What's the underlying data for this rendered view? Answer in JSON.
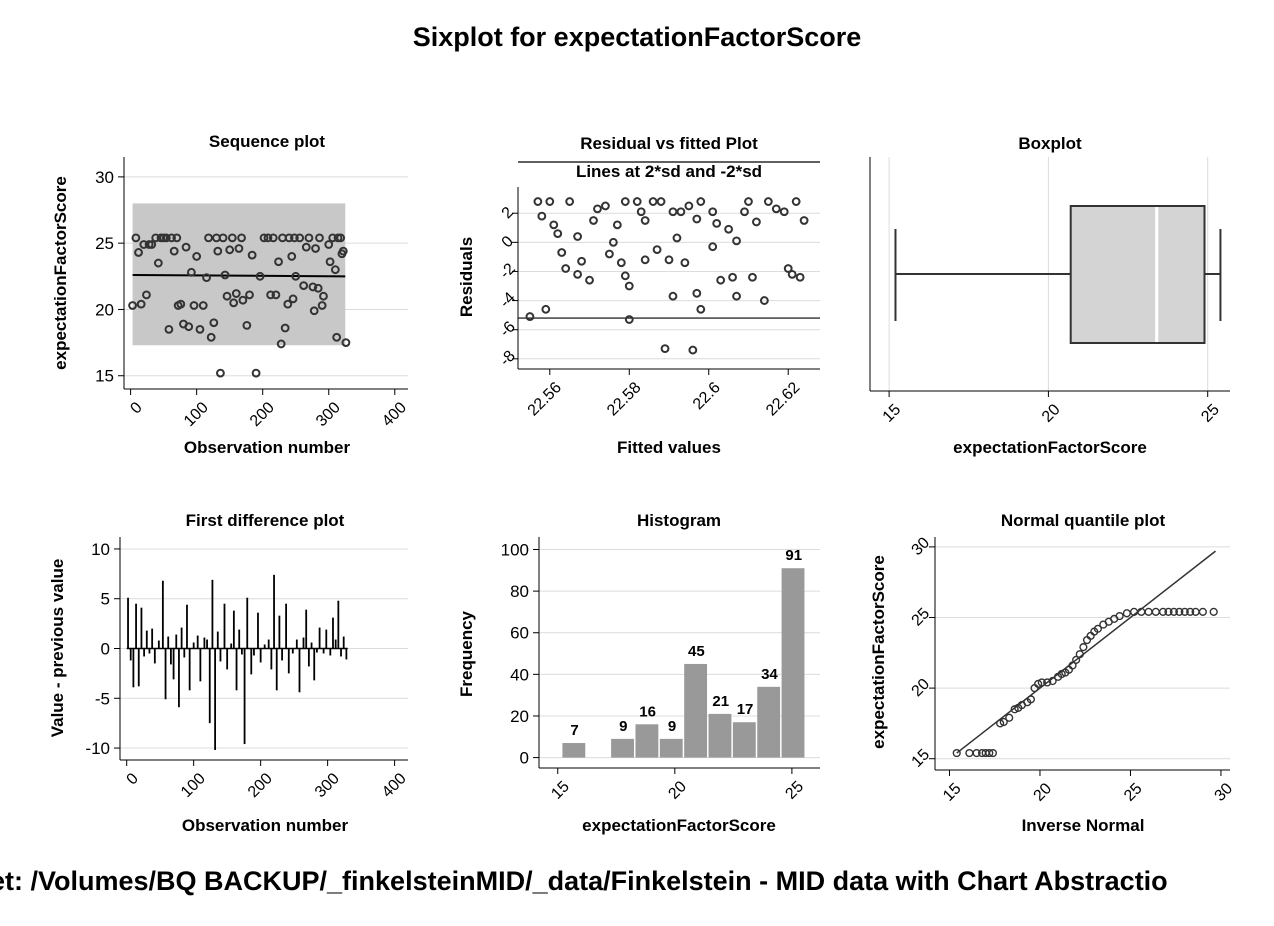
{
  "page": {
    "title": "Sixplot for expectationFactorScore",
    "footer": "et: /Volumes/BQ BACKUP/_finkelsteinMID/_data/Finkelstein - MID data with Chart Abstractio"
  },
  "chart_data": [
    {
      "id": "sequence",
      "type": "scatter",
      "title": "Sequence plot",
      "xlabel": "Observation number",
      "ylabel": "expectationFactorScore",
      "xlim": [
        -10,
        420
      ],
      "ylim": [
        14,
        31.5
      ],
      "xticks": [
        0,
        100,
        200,
        300,
        400
      ],
      "yticks": [
        15,
        20,
        25,
        30
      ],
      "band": {
        "x": [
          3,
          325
        ],
        "y": [
          17.3,
          28
        ]
      },
      "fit_line": {
        "x": [
          3,
          325
        ],
        "y": [
          22.6,
          22.5
        ]
      },
      "points": [
        [
          3,
          20.3
        ],
        [
          8,
          25.4
        ],
        [
          12,
          24.3
        ],
        [
          16,
          20.4
        ],
        [
          20,
          24.9
        ],
        [
          24,
          21.1
        ],
        [
          28,
          24.9
        ],
        [
          32,
          24.9
        ],
        [
          38,
          25.4
        ],
        [
          42,
          23.5
        ],
        [
          46,
          25.4
        ],
        [
          50,
          25.4
        ],
        [
          54,
          25.4
        ],
        [
          58,
          18.5
        ],
        [
          62,
          25.4
        ],
        [
          66,
          24.4
        ],
        [
          70,
          25.4
        ],
        [
          72,
          20.3
        ],
        [
          76,
          20.4
        ],
        [
          80,
          18.9
        ],
        [
          84,
          24.7
        ],
        [
          88,
          18.7
        ],
        [
          92,
          22.8
        ],
        [
          96,
          20.3
        ],
        [
          100,
          24
        ],
        [
          105,
          18.5
        ],
        [
          110,
          20.3
        ],
        [
          115,
          22.4
        ],
        [
          118,
          25.4
        ],
        [
          122,
          17.9
        ],
        [
          126,
          19
        ],
        [
          130,
          25.4
        ],
        [
          132,
          24.4
        ],
        [
          136,
          15.2
        ],
        [
          140,
          25.4
        ],
        [
          143,
          22.6
        ],
        [
          146,
          21
        ],
        [
          150,
          24.5
        ],
        [
          154,
          25.4
        ],
        [
          156,
          20.5
        ],
        [
          160,
          21.2
        ],
        [
          164,
          24.6
        ],
        [
          168,
          25.4
        ],
        [
          170,
          20.7
        ],
        [
          176,
          18.8
        ],
        [
          180,
          21.1
        ],
        [
          184,
          24.1
        ],
        [
          190,
          15.2
        ],
        [
          196,
          22.5
        ],
        [
          202,
          25.4
        ],
        [
          208,
          25.4
        ],
        [
          212,
          21.1
        ],
        [
          216,
          25.4
        ],
        [
          220,
          21.1
        ],
        [
          224,
          23.6
        ],
        [
          228,
          17.4
        ],
        [
          230,
          25.4
        ],
        [
          234,
          18.6
        ],
        [
          238,
          20.4
        ],
        [
          240,
          25.4
        ],
        [
          244,
          24
        ],
        [
          246,
          20.8
        ],
        [
          248,
          25.4
        ],
        [
          250,
          22.5
        ],
        [
          256,
          25.4
        ],
        [
          262,
          21.8
        ],
        [
          266,
          24.7
        ],
        [
          270,
          25.4
        ],
        [
          276,
          21.7
        ],
        [
          278,
          19.9
        ],
        [
          280,
          24.6
        ],
        [
          284,
          21.6
        ],
        [
          286,
          25.4
        ],
        [
          290,
          20.3
        ],
        [
          292,
          21
        ],
        [
          300,
          24.9
        ],
        [
          302,
          23.6
        ],
        [
          306,
          25.4
        ],
        [
          310,
          23
        ],
        [
          312,
          17.9
        ],
        [
          314,
          25.4
        ],
        [
          318,
          25.4
        ],
        [
          320,
          24.2
        ],
        [
          322,
          24.4
        ],
        [
          326,
          17.5
        ]
      ]
    },
    {
      "id": "residual",
      "type": "scatter",
      "title": "Residual vs fitted Plot",
      "subtitle": "Lines at 2*sd and -2*sd",
      "xlabel": "Fitted values",
      "ylabel": "Residuals",
      "xlim": [
        22.552,
        22.628
      ],
      "ylim": [
        -8.7,
        3.8
      ],
      "xticks": [
        22.56,
        22.58,
        22.6,
        22.62
      ],
      "xticklabels": [
        "22.56",
        "22.58",
        "22.6",
        "22.62"
      ],
      "yticks": [
        2,
        0,
        -2,
        -4,
        -6,
        -8
      ],
      "hlines": [
        -5.2
      ],
      "points": [
        [
          22.555,
          -5.1
        ],
        [
          22.559,
          -4.6
        ],
        [
          22.557,
          2.8
        ],
        [
          22.558,
          1.8
        ],
        [
          22.56,
          2.8
        ],
        [
          22.561,
          1.2
        ],
        [
          22.562,
          0.6
        ],
        [
          22.563,
          -0.7
        ],
        [
          22.564,
          -1.8
        ],
        [
          22.565,
          2.8
        ],
        [
          22.567,
          0.4
        ],
        [
          22.567,
          -2.2
        ],
        [
          22.568,
          -1.3
        ],
        [
          22.57,
          -2.6
        ],
        [
          22.571,
          1.5
        ],
        [
          22.572,
          2.3
        ],
        [
          22.574,
          2.5
        ],
        [
          22.575,
          -0.8
        ],
        [
          22.576,
          0
        ],
        [
          22.577,
          1.2
        ],
        [
          22.578,
          -1.4
        ],
        [
          22.579,
          2.8
        ],
        [
          22.579,
          -2.3
        ],
        [
          22.58,
          -3
        ],
        [
          22.58,
          -5.3
        ],
        [
          22.582,
          2.8
        ],
        [
          22.583,
          2.1
        ],
        [
          22.584,
          1.5
        ],
        [
          22.584,
          -1.2
        ],
        [
          22.586,
          2.8
        ],
        [
          22.587,
          -0.5
        ],
        [
          22.588,
          2.8
        ],
        [
          22.589,
          -7.3
        ],
        [
          22.59,
          -1.2
        ],
        [
          22.591,
          2.1
        ],
        [
          22.591,
          -3.7
        ],
        [
          22.592,
          0.3
        ],
        [
          22.593,
          2.1
        ],
        [
          22.594,
          -1.4
        ],
        [
          22.595,
          2.5
        ],
        [
          22.596,
          -7.4
        ],
        [
          22.597,
          1.6
        ],
        [
          22.597,
          -3.5
        ],
        [
          22.598,
          2.8
        ],
        [
          22.598,
          -4.6
        ],
        [
          22.601,
          2.1
        ],
        [
          22.601,
          -0.3
        ],
        [
          22.602,
          1.3
        ],
        [
          22.603,
          -2.6
        ],
        [
          22.605,
          0.9
        ],
        [
          22.606,
          -2.4
        ],
        [
          22.607,
          0.1
        ],
        [
          22.607,
          -3.7
        ],
        [
          22.609,
          2.1
        ],
        [
          22.61,
          2.8
        ],
        [
          22.611,
          -2.4
        ],
        [
          22.612,
          1.4
        ],
        [
          22.614,
          -4
        ],
        [
          22.615,
          2.8
        ],
        [
          22.617,
          2.3
        ],
        [
          22.619,
          2.1
        ],
        [
          22.62,
          -1.8
        ],
        [
          22.621,
          -2.2
        ],
        [
          22.622,
          2.8
        ],
        [
          22.623,
          -2.4
        ],
        [
          22.624,
          1.5
        ]
      ]
    },
    {
      "id": "boxplot",
      "type": "box",
      "title": "Boxplot",
      "xlabel": "expectationFactorScore",
      "ylabel": "",
      "xlim": [
        14.4,
        25.7
      ],
      "xticks": [
        15,
        20,
        25
      ],
      "box": {
        "whisker_low": 15.2,
        "q1": 20.7,
        "median": 23.4,
        "q3": 24.9,
        "whisker_high": 25.4
      }
    },
    {
      "id": "first_difference",
      "type": "line",
      "title": "First difference plot",
      "xlabel": "Observation number",
      "ylabel": "Value - previous value",
      "xlim": [
        -10,
        420
      ],
      "ylim": [
        -11.2,
        11.2
      ],
      "xticks": [
        0,
        100,
        200,
        300,
        400
      ],
      "yticks": [
        10,
        5,
        0,
        -5,
        -10
      ],
      "spikes": [
        [
          2,
          5.1
        ],
        [
          6,
          -1.2
        ],
        [
          10,
          -3.9
        ],
        [
          14,
          4.5
        ],
        [
          18,
          -3.8
        ],
        [
          22,
          4.1
        ],
        [
          26,
          -0.8
        ],
        [
          30,
          1.8
        ],
        [
          34,
          -0.5
        ],
        [
          38,
          2
        ],
        [
          42,
          -1.5
        ],
        [
          48,
          0.8
        ],
        [
          54,
          6.8
        ],
        [
          58,
          -5.1
        ],
        [
          62,
          1.2
        ],
        [
          66,
          -1.6
        ],
        [
          70,
          -3.1
        ],
        [
          74,
          1.4
        ],
        [
          78,
          -5.9
        ],
        [
          82,
          2.1
        ],
        [
          86,
          -0.9
        ],
        [
          90,
          4.4
        ],
        [
          94,
          -4.2
        ],
        [
          100,
          0.6
        ],
        [
          106,
          1.3
        ],
        [
          110,
          -3.3
        ],
        [
          116,
          1.1
        ],
        [
          120,
          0.9
        ],
        [
          124,
          -7.5
        ],
        [
          128,
          6.9
        ],
        [
          132,
          -10.2
        ],
        [
          136,
          1.7
        ],
        [
          140,
          -1.3
        ],
        [
          146,
          4.5
        ],
        [
          150,
          -2.1
        ],
        [
          156,
          0.5
        ],
        [
          160,
          3.8
        ],
        [
          164,
          -4.2
        ],
        [
          168,
          1.9
        ],
        [
          172,
          -0.6
        ],
        [
          176,
          -9.6
        ],
        [
          180,
          5.1
        ],
        [
          186,
          -2.6
        ],
        [
          190,
          -0.7
        ],
        [
          196,
          3.6
        ],
        [
          200,
          -1.4
        ],
        [
          206,
          0.4
        ],
        [
          212,
          0.9
        ],
        [
          216,
          -2.1
        ],
        [
          220,
          7.4
        ],
        [
          224,
          -4.2
        ],
        [
          228,
          3.3
        ],
        [
          232,
          -1.2
        ],
        [
          238,
          4.5
        ],
        [
          242,
          -2.5
        ],
        [
          248,
          -0.5
        ],
        [
          254,
          0.9
        ],
        [
          258,
          -4.4
        ],
        [
          264,
          1.1
        ],
        [
          268,
          3.9
        ],
        [
          272,
          -1.8
        ],
        [
          276,
          0.6
        ],
        [
          280,
          -3.2
        ],
        [
          284,
          -0.4
        ],
        [
          288,
          2.1
        ],
        [
          294,
          -0.5
        ],
        [
          298,
          1.9
        ],
        [
          304,
          -0.7
        ],
        [
          308,
          3.1
        ],
        [
          312,
          0.9
        ],
        [
          316,
          4.8
        ],
        [
          320,
          -0.8
        ],
        [
          324,
          1.2
        ],
        [
          328,
          -1.1
        ]
      ]
    },
    {
      "id": "histogram",
      "type": "bar",
      "title": "Histogram",
      "xlabel": "expectationFactorScore",
      "ylabel": "Frequency",
      "xlim": [
        14.2,
        26.2
      ],
      "ylim": [
        -5,
        106
      ],
      "xticks": [
        15,
        20,
        25
      ],
      "yticks": [
        0,
        20,
        40,
        60,
        80,
        100
      ],
      "bin_width": 1.04,
      "bins": [
        {
          "center": 15.72,
          "value": 7
        },
        {
          "center": 17.8,
          "value": 9
        },
        {
          "center": 18.84,
          "value": 16
        },
        {
          "center": 19.88,
          "value": 9
        },
        {
          "center": 20.92,
          "value": 45
        },
        {
          "center": 21.96,
          "value": 21
        },
        {
          "center": 23.0,
          "value": 17
        },
        {
          "center": 24.04,
          "value": 34
        },
        {
          "center": 25.08,
          "value": 91
        }
      ]
    },
    {
      "id": "normal_quantile",
      "type": "scatter",
      "title": "Normal quantile plot",
      "xlabel": "Inverse Normal",
      "ylabel": "expectationFactorScore",
      "xlim": [
        14.2,
        30.5
      ],
      "ylim": [
        14.2,
        30.7
      ],
      "xticks": [
        15,
        20,
        25,
        30
      ],
      "yticks": [
        15,
        20,
        25,
        30
      ],
      "ref_line": {
        "x": [
          15.4,
          29.7
        ],
        "y": [
          15.4,
          29.7
        ]
      },
      "points": [
        [
          15.4,
          15.4
        ],
        [
          16.1,
          15.4
        ],
        [
          16.5,
          15.4
        ],
        [
          16.8,
          15.4
        ],
        [
          17,
          15.4
        ],
        [
          17.2,
          15.4
        ],
        [
          17.4,
          15.4
        ],
        [
          17.8,
          17.5
        ],
        [
          18,
          17.6
        ],
        [
          18.3,
          17.9
        ],
        [
          18.6,
          18.5
        ],
        [
          18.8,
          18.6
        ],
        [
          19,
          18.8
        ],
        [
          19.3,
          19
        ],
        [
          19.5,
          19.2
        ],
        [
          19.7,
          20
        ],
        [
          19.9,
          20.3
        ],
        [
          20.1,
          20.4
        ],
        [
          20.4,
          20.4
        ],
        [
          20.7,
          20.5
        ],
        [
          21,
          20.8
        ],
        [
          21.2,
          21
        ],
        [
          21.4,
          21.1
        ],
        [
          21.6,
          21.3
        ],
        [
          21.8,
          21.6
        ],
        [
          22,
          22
        ],
        [
          22.2,
          22.4
        ],
        [
          22.4,
          22.9
        ],
        [
          22.6,
          23.4
        ],
        [
          22.8,
          23.7
        ],
        [
          23,
          24
        ],
        [
          23.2,
          24.2
        ],
        [
          23.5,
          24.5
        ],
        [
          23.8,
          24.7
        ],
        [
          24.1,
          24.9
        ],
        [
          24.4,
          25.1
        ],
        [
          24.8,
          25.3
        ],
        [
          25.2,
          25.4
        ],
        [
          25.6,
          25.4
        ],
        [
          26,
          25.4
        ],
        [
          26.4,
          25.4
        ],
        [
          26.8,
          25.4
        ],
        [
          27.1,
          25.4
        ],
        [
          27.4,
          25.4
        ],
        [
          27.7,
          25.4
        ],
        [
          28,
          25.4
        ],
        [
          28.3,
          25.4
        ],
        [
          28.6,
          25.4
        ],
        [
          29,
          25.4
        ],
        [
          29.6,
          25.4
        ]
      ]
    }
  ]
}
